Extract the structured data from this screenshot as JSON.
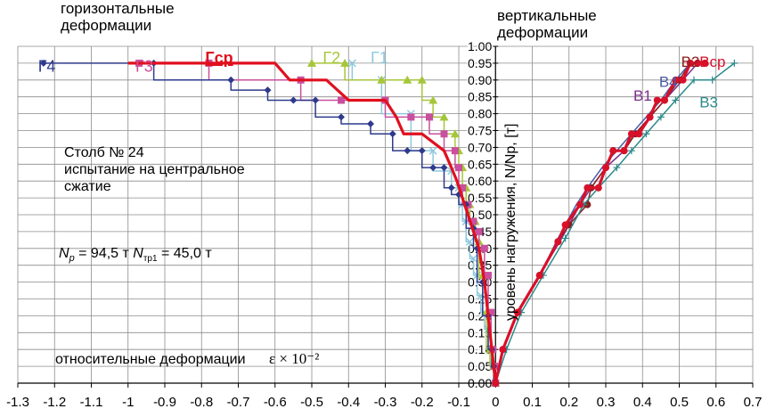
{
  "texts": {
    "head_left_1": "горизонтальные",
    "head_left_2": "деформации",
    "head_right_1": "вертикальные",
    "head_right_2": "деформации",
    "pillar": "Столб № 24",
    "test_1": "испытание на центральное",
    "test_2": "сжатие",
    "np_label": "N",
    "np_sub": "p",
    "np_value": " = 94,5 т ",
    "ntr_label": "N",
    "ntr_sub": "тр1",
    "ntr_value": " = 45,0 т",
    "relative_def": "относительные деформации",
    "epsilon": "ε × 10⁻²",
    "y_axis_label": "уровень нагружения,  N/Np, [т]"
  },
  "chart_data": {
    "type": "line",
    "xlim": [
      -1.3,
      0.7
    ],
    "ylim": [
      0,
      1.0
    ],
    "x_ticks": [
      -1.3,
      -1.2,
      -1.1,
      -1,
      -0.9,
      -0.8,
      -0.7,
      -0.6,
      -0.5,
      -0.4,
      -0.3,
      -0.2,
      -0.1,
      0,
      0.1,
      0.2,
      0.3,
      0.4,
      0.5,
      0.6,
      0.7
    ],
    "x_tick_labels": [
      "-1.3",
      "-1.2",
      "-1.1",
      "-1",
      "-0.9",
      "-0.8",
      "-0.7",
      "-0.6",
      "-0.5",
      "-0.4",
      "-0.3",
      "-0.2",
      "-0.1",
      "0",
      "0.1",
      "0.2",
      "0.3",
      "0.4",
      "0.5",
      "0.6",
      "0.7"
    ],
    "y_ticks": [
      0,
      0.05,
      0.1,
      0.15,
      0.2,
      0.25,
      0.3,
      0.35,
      0.4,
      0.45,
      0.5,
      0.55,
      0.6,
      0.65,
      0.7,
      0.75,
      0.8,
      0.85,
      0.9,
      0.95,
      1.0
    ],
    "y_tick_labels": [
      "0.00",
      "0.05",
      "0.10",
      "0.15",
      "0.20",
      "0.25",
      "0.30",
      "0.35",
      "0.40",
      "0.45",
      "0.50",
      "0.55",
      "0.60",
      "0.65",
      "0.70",
      "0.75",
      "0.80",
      "0.85",
      "0.90",
      "0.95",
      "1.00"
    ],
    "grid": true,
    "series": [
      {
        "name": "Г1",
        "color": "#8EC9DE",
        "marker": "x",
        "line_width": 1.5,
        "step": true,
        "x": [
          0,
          -0.003,
          -0.012,
          -0.02,
          -0.03,
          -0.04,
          -0.05,
          -0.06,
          -0.07,
          -0.08,
          -0.09,
          -0.1,
          -0.12,
          -0.17,
          -0.23,
          -0.31,
          -0.39
        ],
        "y": [
          0,
          0.05,
          0.1,
          0.16,
          0.21,
          0.26,
          0.32,
          0.37,
          0.42,
          0.48,
          0.53,
          0.58,
          0.63,
          0.69,
          0.8,
          0.9,
          0.95
        ]
      },
      {
        "name": "Г2",
        "color": "#A6C63A",
        "marker": "triangle",
        "line_width": 1.5,
        "step": true,
        "x": [
          0,
          -0.005,
          -0.015,
          -0.025,
          -0.035,
          -0.045,
          -0.055,
          -0.07,
          -0.08,
          -0.09,
          -0.1,
          -0.11,
          -0.14,
          -0.17,
          -0.2,
          -0.24,
          -0.31,
          -0.41,
          -0.5
        ],
        "y": [
          0,
          0.05,
          0.1,
          0.21,
          0.32,
          0.42,
          0.48,
          0.53,
          0.58,
          0.64,
          0.69,
          0.74,
          0.79,
          0.84,
          0.9,
          0.9,
          0.9,
          0.95,
          0.95
        ]
      },
      {
        "name": "Г3",
        "color": "#C9509E",
        "marker": "square",
        "line_width": 1.5,
        "step": true,
        "x": [
          0,
          -0.003,
          -0.007,
          -0.012,
          -0.02,
          -0.03,
          -0.045,
          -0.06,
          -0.075,
          -0.09,
          -0.1,
          -0.11,
          -0.14,
          -0.18,
          -0.23,
          -0.3,
          -0.42,
          -0.53,
          -0.78,
          -0.97
        ],
        "y": [
          0,
          0.05,
          0.1,
          0.21,
          0.32,
          0.4,
          0.45,
          0.48,
          0.53,
          0.58,
          0.64,
          0.69,
          0.74,
          0.79,
          0.79,
          0.84,
          0.84,
          0.9,
          0.95,
          0.95
        ]
      },
      {
        "name": "Г4",
        "color": "#2E3A8C",
        "marker": "diamond",
        "line_width": 1.5,
        "step": true,
        "x": [
          0,
          -0.005,
          -0.01,
          -0.02,
          -0.035,
          -0.05,
          -0.06,
          -0.08,
          -0.1,
          -0.12,
          -0.14,
          -0.17,
          -0.2,
          -0.24,
          -0.28,
          -0.34,
          -0.42,
          -0.49,
          -0.55,
          -0.62,
          -0.72,
          -0.93,
          -1.23
        ],
        "y": [
          0,
          0.05,
          0.1,
          0.2,
          0.3,
          0.4,
          0.46,
          0.53,
          0.56,
          0.58,
          0.64,
          0.64,
          0.69,
          0.69,
          0.74,
          0.77,
          0.79,
          0.84,
          0.84,
          0.87,
          0.9,
          0.95,
          0.95
        ]
      },
      {
        "name": "Гср",
        "color": "#E0101F",
        "marker": "none",
        "line_width": 3.2,
        "step": false,
        "x": [
          0,
          -0.005,
          -0.01,
          -0.02,
          -0.03,
          -0.045,
          -0.06,
          -0.075,
          -0.09,
          -0.105,
          -0.12,
          -0.14,
          -0.14,
          -0.2,
          -0.25,
          -0.27,
          -0.3,
          -0.3,
          -0.4,
          -0.46,
          -0.48,
          -0.56,
          -0.6,
          -0.78,
          -0.96,
          -1.0
        ],
        "y": [
          0,
          0.05,
          0.1,
          0.2,
          0.3,
          0.4,
          0.45,
          0.5,
          0.55,
          0.6,
          0.64,
          0.69,
          0.69,
          0.74,
          0.74,
          0.79,
          0.84,
          0.84,
          0.84,
          0.9,
          0.9,
          0.9,
          0.95,
          0.95,
          0.95,
          0.95
        ]
      },
      {
        "name": "В1",
        "color": "#7B2E8E",
        "marker": "none",
        "line_width": 1.5,
        "step": false,
        "x": [
          0,
          0.02,
          0.06,
          0.12,
          0.18,
          0.23,
          0.26,
          0.3,
          0.35,
          0.38,
          0.42,
          0.46,
          0.51,
          0.55
        ],
        "y": [
          0,
          0.1,
          0.21,
          0.32,
          0.43,
          0.53,
          0.58,
          0.64,
          0.69,
          0.74,
          0.79,
          0.84,
          0.9,
          0.95
        ]
      },
      {
        "name": "В2",
        "color": "#8B1E1E",
        "marker": "circle",
        "line_width": 1.5,
        "step": false,
        "x": [
          0,
          0.02,
          0.06,
          0.12,
          0.17,
          0.2,
          0.25,
          0.26,
          0.3,
          0.32,
          0.35,
          0.38,
          0.42,
          0.46,
          0.5,
          0.53,
          0.55
        ],
        "y": [
          0,
          0.1,
          0.21,
          0.32,
          0.42,
          0.47,
          0.53,
          0.58,
          0.64,
          0.69,
          0.69,
          0.74,
          0.79,
          0.84,
          0.9,
          0.95,
          0.95
        ]
      },
      {
        "name": "В3",
        "color": "#2C8A8A",
        "marker": "plus",
        "line_width": 1.5,
        "step": false,
        "x": [
          0,
          0.03,
          0.07,
          0.13,
          0.19,
          0.24,
          0.28,
          0.33,
          0.37,
          0.41,
          0.45,
          0.49,
          0.54,
          0.59,
          0.65
        ],
        "y": [
          0,
          0.1,
          0.21,
          0.32,
          0.43,
          0.53,
          0.58,
          0.64,
          0.69,
          0.74,
          0.79,
          0.84,
          0.9,
          0.9,
          0.95
        ]
      },
      {
        "name": "В4",
        "color": "#4B5BA6",
        "marker": "none",
        "line_width": 1.5,
        "step": false,
        "x": [
          0,
          0.02,
          0.06,
          0.12,
          0.17,
          0.22,
          0.25,
          0.29,
          0.33,
          0.37,
          0.41,
          0.45,
          0.49,
          0.53
        ],
        "y": [
          0,
          0.1,
          0.21,
          0.32,
          0.43,
          0.53,
          0.58,
          0.64,
          0.69,
          0.74,
          0.79,
          0.84,
          0.9,
          0.95
        ]
      },
      {
        "name": "Вср",
        "color": "#D8102A",
        "marker": "circle",
        "line_width": 3.2,
        "step": false,
        "x": [
          0,
          0.02,
          0.06,
          0.12,
          0.17,
          0.19,
          0.23,
          0.25,
          0.28,
          0.3,
          0.32,
          0.35,
          0.37,
          0.39,
          0.42,
          0.44,
          0.46,
          0.49,
          0.51,
          0.53,
          0.55,
          0.57
        ],
        "y": [
          0,
          0.1,
          0.21,
          0.32,
          0.42,
          0.47,
          0.53,
          0.58,
          0.58,
          0.64,
          0.69,
          0.69,
          0.74,
          0.74,
          0.79,
          0.84,
          0.84,
          0.9,
          0.9,
          0.95,
          0.95,
          0.95
        ]
      }
    ],
    "series_labels": [
      {
        "name": "Г4",
        "color": "#2E3A8C",
        "anchor": [
          -1.245,
          0.94
        ],
        "size": 18
      },
      {
        "name": "Г3",
        "color": "#C9509E",
        "anchor": [
          -0.98,
          0.94
        ],
        "size": 18
      },
      {
        "name": "Гср",
        "color": "#E0101F",
        "anchor": [
          -0.79,
          0.965
        ],
        "size": 18,
        "bold": true,
        "underline": true
      },
      {
        "name": "Г2",
        "color": "#A6C63A",
        "anchor": [
          -0.47,
          0.965
        ],
        "size": 18
      },
      {
        "name": "Г1",
        "color": "#8EC9DE",
        "anchor": [
          -0.34,
          0.965
        ],
        "size": 18
      },
      {
        "name": "В2",
        "color": "#8B1E1E",
        "anchor": [
          0.505,
          0.955
        ],
        "size": 17
      },
      {
        "name": "Вср",
        "color": "#D8102A",
        "anchor": [
          0.555,
          0.955
        ],
        "size": 17
      },
      {
        "name": "В4",
        "color": "#4B5BA6",
        "anchor": [
          0.445,
          0.895
        ],
        "size": 17
      },
      {
        "name": "В1",
        "color": "#7B2E8E",
        "anchor": [
          0.375,
          0.855
        ],
        "size": 17
      },
      {
        "name": "В3",
        "color": "#2C8A8A",
        "anchor": [
          0.555,
          0.835
        ],
        "size": 17
      }
    ]
  }
}
